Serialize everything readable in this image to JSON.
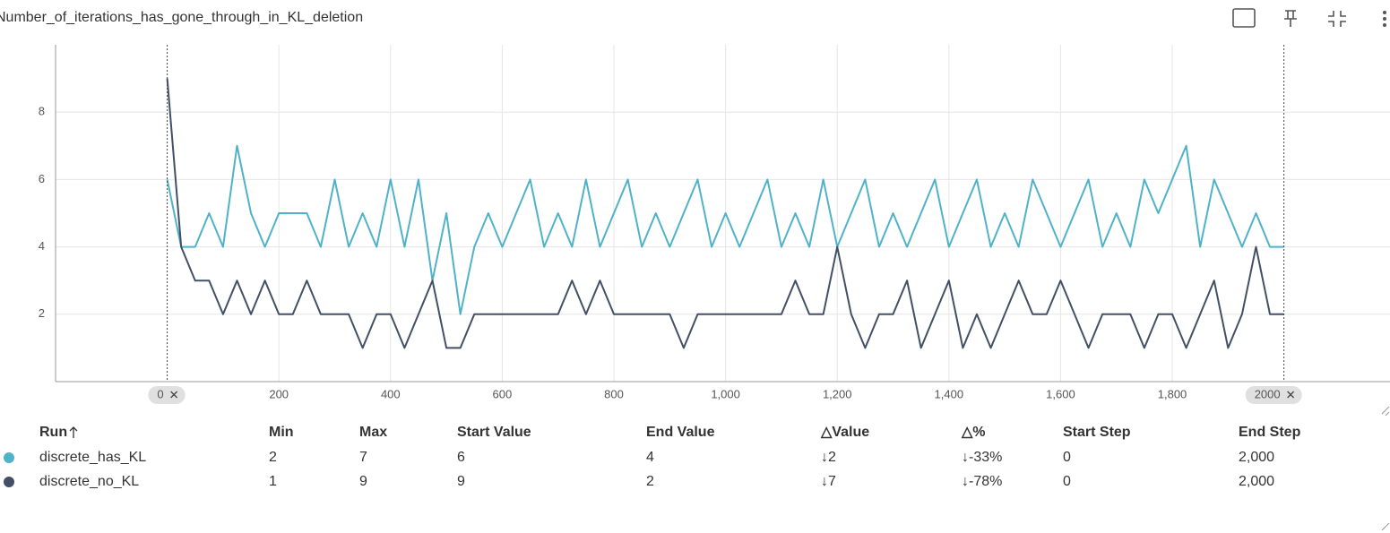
{
  "header": {
    "title": "Number_of_iterations_has_gone_through_in_KL_deletion"
  },
  "chart_data": {
    "type": "line",
    "x": [
      0,
      25,
      50,
      75,
      100,
      125,
      150,
      175,
      200,
      225,
      250,
      275,
      300,
      325,
      350,
      375,
      400,
      425,
      450,
      475,
      500,
      525,
      550,
      575,
      600,
      625,
      650,
      675,
      700,
      725,
      750,
      775,
      800,
      825,
      850,
      875,
      900,
      925,
      950,
      975,
      1000,
      1025,
      1050,
      1075,
      1100,
      1125,
      1150,
      1175,
      1200,
      1225,
      1250,
      1275,
      1300,
      1325,
      1350,
      1375,
      1400,
      1425,
      1450,
      1475,
      1500,
      1525,
      1550,
      1575,
      1600,
      1625,
      1650,
      1675,
      1700,
      1725,
      1750,
      1775,
      1800,
      1825,
      1850,
      1875,
      1900,
      1925,
      1950,
      1975,
      2000
    ],
    "series": [
      {
        "name": "discrete_has_KL",
        "color": "#4fb2c9",
        "values": [
          6,
          4,
          4,
          5,
          4,
          7,
          5,
          4,
          5,
          5,
          5,
          4,
          6,
          4,
          5,
          4,
          6,
          4,
          6,
          3,
          5,
          2,
          4,
          5,
          4,
          5,
          6,
          4,
          5,
          4,
          6,
          4,
          5,
          6,
          4,
          5,
          4,
          5,
          6,
          4,
          5,
          4,
          5,
          6,
          4,
          5,
          4,
          6,
          4,
          5,
          6,
          4,
          5,
          4,
          5,
          6,
          4,
          5,
          6,
          4,
          5,
          4,
          6,
          5,
          4,
          5,
          6,
          4,
          5,
          4,
          6,
          5,
          6,
          7,
          4,
          6,
          5,
          4,
          5,
          4,
          4
        ]
      },
      {
        "name": "discrete_no_KL",
        "color": "#425066",
        "values": [
          9,
          4,
          3,
          3,
          2,
          3,
          2,
          3,
          2,
          2,
          3,
          2,
          2,
          2,
          1,
          2,
          2,
          1,
          2,
          3,
          1,
          1,
          2,
          2,
          2,
          2,
          2,
          2,
          2,
          3,
          2,
          3,
          2,
          2,
          2,
          2,
          2,
          1,
          2,
          2,
          2,
          2,
          2,
          2,
          2,
          3,
          2,
          2,
          4,
          2,
          1,
          2,
          2,
          3,
          1,
          2,
          3,
          1,
          2,
          1,
          2,
          3,
          2,
          2,
          3,
          2,
          1,
          2,
          2,
          2,
          1,
          2,
          2,
          1,
          2,
          3,
          1,
          2,
          4,
          2,
          2
        ]
      }
    ],
    "xlim": [
      -200,
      2190
    ],
    "xticks": [
      200,
      400,
      600,
      800,
      {
        "value": 1000,
        "label": "1,000"
      },
      {
        "value": 1200,
        "label": "1,200"
      },
      {
        "value": 1400,
        "label": "1,400"
      },
      {
        "value": 1600,
        "label": "1,600"
      },
      {
        "value": 1800,
        "label": "1,800"
      }
    ],
    "ylim": [
      0,
      10
    ],
    "yticks": [
      2,
      4,
      6,
      8
    ],
    "grid": true,
    "range_markers": [
      0,
      2000
    ]
  },
  "table": {
    "columns": [
      "Run",
      "Min",
      "Max",
      "Start Value",
      "End Value",
      "△Value",
      "△%",
      "Start Step",
      "End Step"
    ],
    "rows": [
      [
        "discrete_has_KL",
        "2",
        "7",
        "6",
        "4",
        "↓2",
        "↓-33%",
        "0",
        "2,000"
      ],
      [
        "discrete_no_KL",
        "1",
        "9",
        "9",
        "2",
        "↓7",
        "↓-78%",
        "0",
        "2,000"
      ]
    ]
  }
}
